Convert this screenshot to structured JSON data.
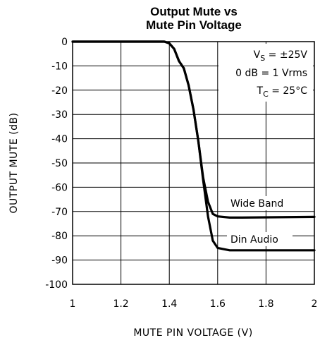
{
  "chart_data": {
    "type": "line",
    "title_line1": "Output Mute vs",
    "title_line2": "Mute Pin Voltage",
    "xlabel": "MUTE PIN VOLTAGE (V)",
    "ylabel": "OUTPUT MUTE (dB)",
    "xlim": [
      1,
      2
    ],
    "ylim": [
      -100,
      0
    ],
    "xticks": [
      "1",
      "1.2",
      "1.4",
      "1.6",
      "1.8",
      "2"
    ],
    "yticks": [
      "0",
      "-10",
      "-20",
      "-30",
      "-40",
      "-50",
      "-60",
      "-70",
      "-80",
      "-90",
      "-100"
    ],
    "grid": true,
    "annotations": {
      "vs_label": "V",
      "vs_sub": "S",
      "vs_value": " = ±25V",
      "db_ref": "0 dB = 1 Vrms",
      "tc_label": "T",
      "tc_sub": "C",
      "tc_value": " = 25°C"
    },
    "series": [
      {
        "name": "Wide Band",
        "x": [
          1.0,
          1.38,
          1.4,
          1.42,
          1.44,
          1.46,
          1.48,
          1.5,
          1.52,
          1.54,
          1.56,
          1.58,
          1.6,
          1.65,
          1.7,
          2.0
        ],
        "y": [
          0,
          0,
          -0.7,
          -3,
          -8,
          -11,
          -18,
          -28,
          -41,
          -56,
          -66,
          -71,
          -72,
          -72.5,
          -72.5,
          -72.2
        ]
      },
      {
        "name": "Din Audio",
        "x": [
          1.0,
          1.38,
          1.4,
          1.42,
          1.44,
          1.46,
          1.48,
          1.5,
          1.52,
          1.54,
          1.56,
          1.58,
          1.6,
          1.65,
          1.7,
          2.0
        ],
        "y": [
          0,
          0,
          -0.7,
          -3,
          -8,
          -11,
          -18,
          -28,
          -41,
          -57,
          -72,
          -82,
          -85,
          -86,
          -86,
          -86
        ]
      }
    ]
  }
}
